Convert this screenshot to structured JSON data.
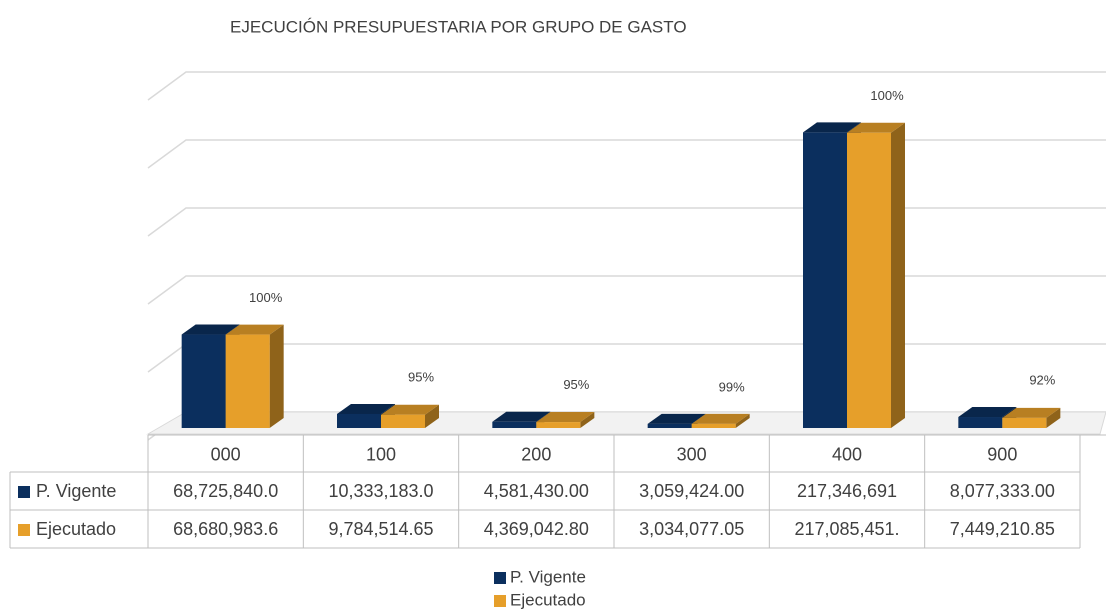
{
  "chart_data": {
    "type": "bar3d",
    "title": "EJECUCIÓN PRESUPUESTARIA POR GRUPO DE GASTO",
    "categories": [
      "000",
      "100",
      "200",
      "300",
      "400",
      "900"
    ],
    "series": [
      {
        "name": "P. Vigente",
        "color": "#0b2f5e",
        "values": [
          68725840.0,
          10333183.0,
          4581430.0,
          3059424.0,
          217346691,
          8077333.0
        ],
        "value_labels": [
          "68,725,840.0",
          "10,333,183.0",
          "4,581,430.00",
          "3,059,424.00",
          "217,346,691",
          "8,077,333.00"
        ]
      },
      {
        "name": "Ejecutado",
        "color": "#e69f2a",
        "values": [
          68680983.6,
          9784514.65,
          4369042.8,
          3034077.05,
          217085451,
          7449210.85
        ],
        "value_labels": [
          "68,680,983.6",
          "9,784,514.65",
          "4,369,042.80",
          "3,034,077.05",
          "217,085,451.",
          "7,449,210.85"
        ]
      }
    ],
    "execution_labels": [
      "100%",
      "95%",
      "95%",
      "99%",
      "100%",
      "92%"
    ],
    "ylim": [
      0,
      250000000
    ],
    "yticks": [
      0,
      50000000,
      100000000,
      150000000,
      200000000,
      250000000
    ],
    "grid": true
  }
}
